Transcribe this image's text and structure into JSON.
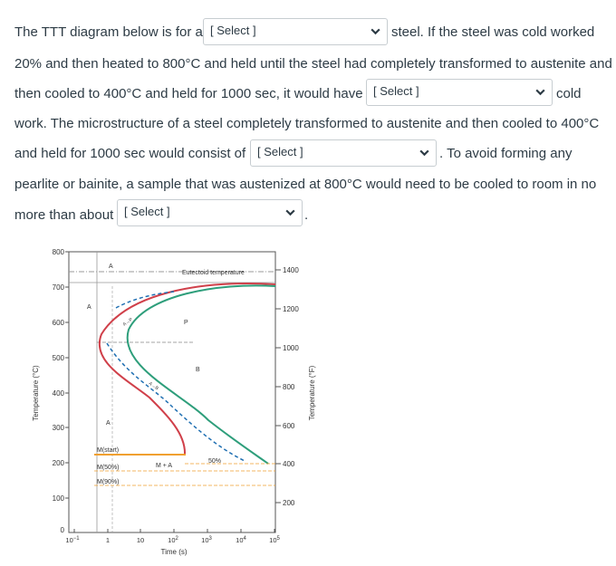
{
  "question": {
    "t1": "The TTT diagram below is for a",
    "t2": "steel. If the steel was cold worked",
    "t3": "20% and then heated to 800°C and held until the steel had completely transformed to austenite and",
    "t4": "then cooled to 400°C and held for 1000 sec, it would have",
    "t5": "cold",
    "t6": "work.  The microstructure of a steel completely transformed to austenite and then cooled to 400°C",
    "t7": "and held for 1000 sec would consist of",
    "t8": ". To avoid forming any",
    "t9": "pearlite or bainite, a sample that was austenized at 800°C would need to be cooled to room in no",
    "t10": "more than about",
    "t11": "."
  },
  "dropdowns": [
    {
      "value": "[ Select ]"
    },
    {
      "value": "[ Select ]"
    },
    {
      "value": "[ Select ]"
    },
    {
      "value": "[ Select ]"
    }
  ],
  "chevron_icon": "chevron-down-icon",
  "diagram": {
    "ylabel_left": "Temperature (°C)",
    "ylabel_right": "Temperature (°F)",
    "xlabel": "Time (s)",
    "left_ticks": [
      "800",
      "700",
      "600",
      "500",
      "400",
      "300",
      "200",
      "100",
      "0"
    ],
    "right_ticks": [
      "1400",
      "1200",
      "1000",
      "800",
      "600",
      "400",
      "200"
    ],
    "x_ticks_base": [
      "10",
      "1",
      "10",
      "10",
      "10",
      "10",
      "10"
    ],
    "x_ticks_exp": [
      "−1",
      "",
      "",
      "2",
      "3",
      "4",
      "5"
    ],
    "labels": {
      "eutectoid": "Eutectoid temperature",
      "A_top": "A",
      "A_mid": "A",
      "A_low": "A",
      "P": "P",
      "B": "B",
      "A_to_P": "A→P",
      "A_to_B": "A→B",
      "fifty": "50%",
      "mstart": "M(start)",
      "m50": "M(50%)",
      "m90": "M(90%)",
      "MA": "M + A"
    },
    "colors": {
      "start_curve": "#d0404a",
      "finish_curve": "#2e9e7b",
      "ms_line": "#f0a030",
      "dash": "#1f6fb2"
    }
  }
}
